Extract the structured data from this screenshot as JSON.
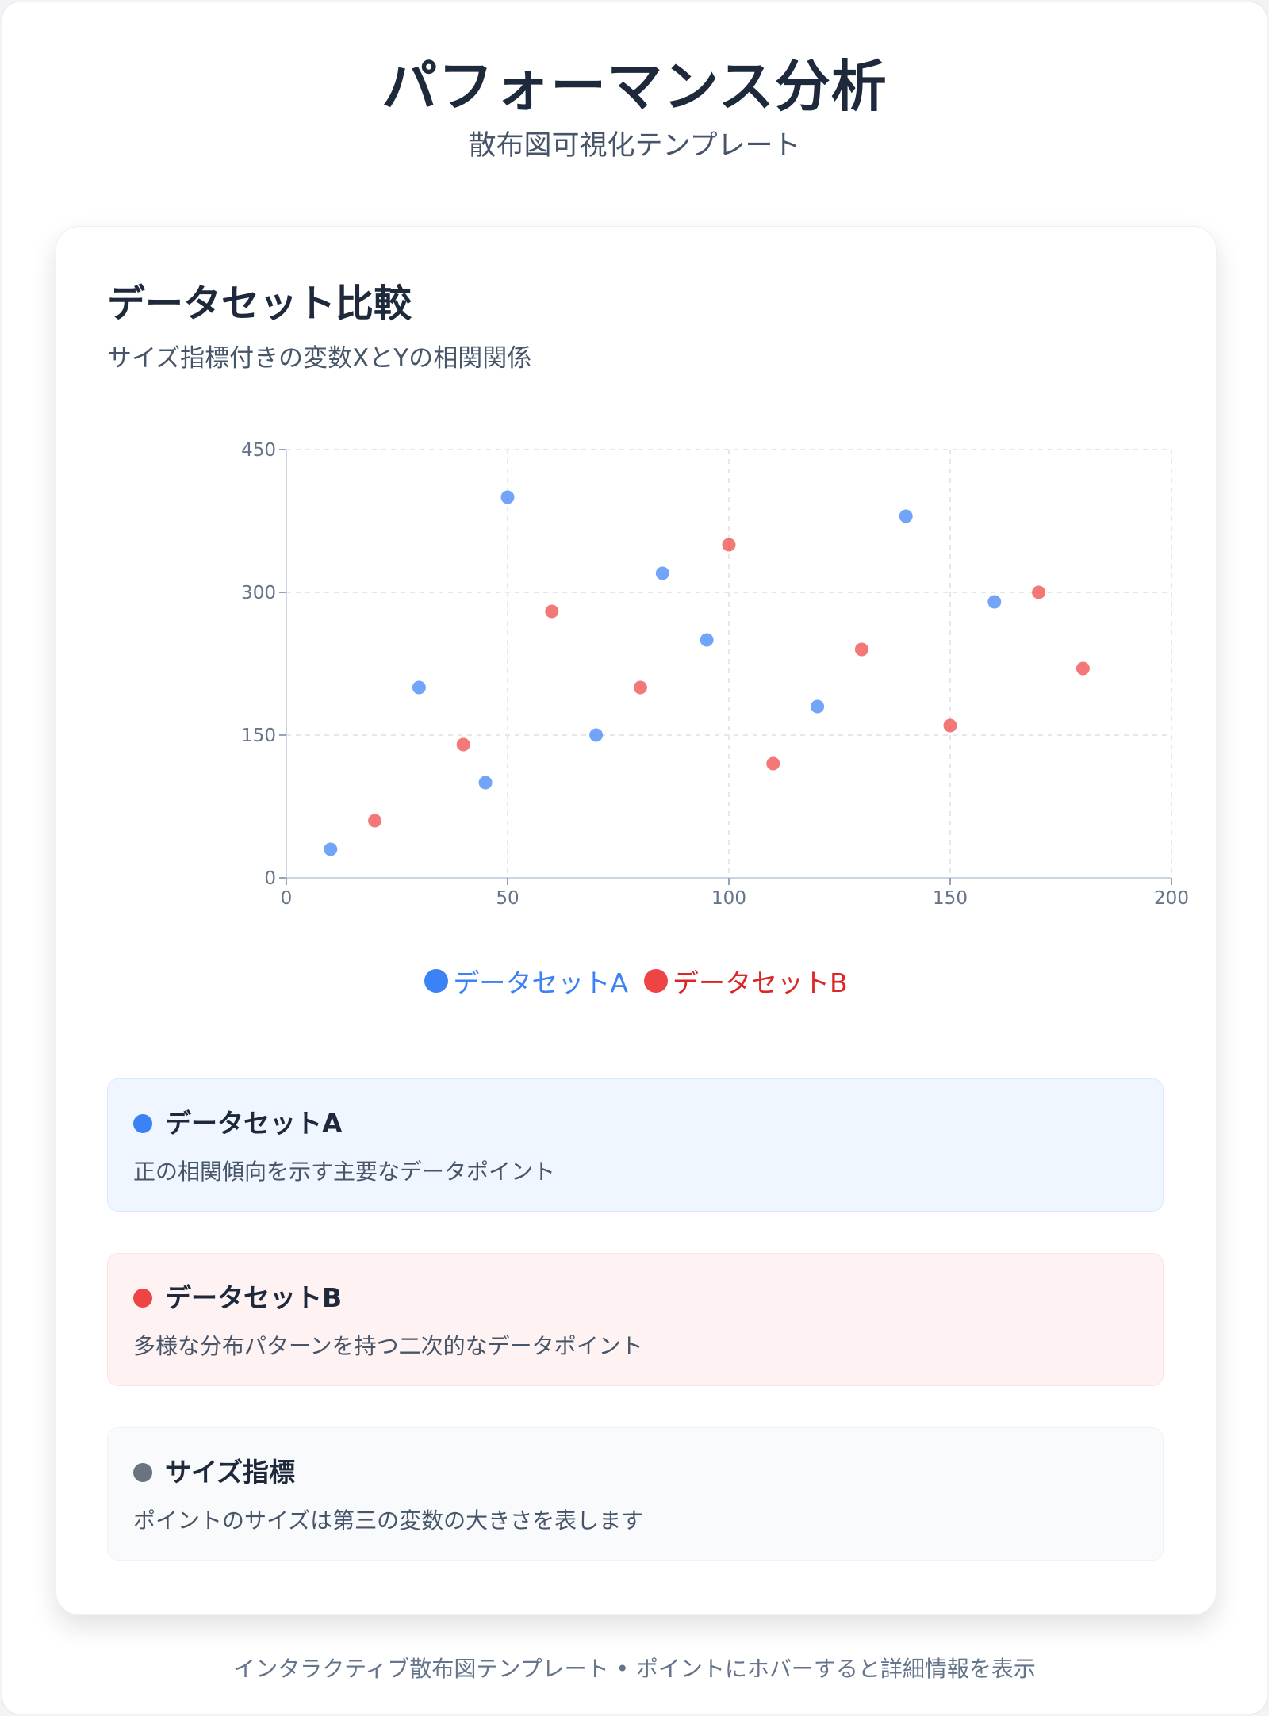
{
  "header": {
    "title": "パフォーマンス分析",
    "subtitle": "散布図可視化テンプレート"
  },
  "card": {
    "title": "データセット比較",
    "description": "サイズ指標付きの変数XとYの相関関係"
  },
  "colors": {
    "dataset_a": "#3b82f6",
    "dataset_b": "#ef4444",
    "size_metric": "#6b7280"
  },
  "chart_data": {
    "type": "scatter",
    "title": "",
    "xlabel": "",
    "ylabel": "",
    "xlim": [
      0,
      200
    ],
    "ylim": [
      0,
      450
    ],
    "x_ticks": [
      "0",
      "50",
      "100",
      "150",
      "200"
    ],
    "y_ticks": [
      "0",
      "150",
      "300",
      "450"
    ],
    "grid": true,
    "legend_position": "bottom-center",
    "series": [
      {
        "name": "データセットA",
        "color": "#3b82f6",
        "points": [
          {
            "x": 10,
            "y": 30
          },
          {
            "x": 30,
            "y": 200
          },
          {
            "x": 45,
            "y": 100
          },
          {
            "x": 50,
            "y": 400
          },
          {
            "x": 70,
            "y": 150
          },
          {
            "x": 85,
            "y": 320
          },
          {
            "x": 95,
            "y": 250
          },
          {
            "x": 120,
            "y": 180
          },
          {
            "x": 140,
            "y": 380
          },
          {
            "x": 160,
            "y": 290
          }
        ]
      },
      {
        "name": "データセットB",
        "color": "#ef4444",
        "points": [
          {
            "x": 20,
            "y": 60
          },
          {
            "x": 40,
            "y": 140
          },
          {
            "x": 60,
            "y": 280
          },
          {
            "x": 80,
            "y": 200
          },
          {
            "x": 100,
            "y": 350
          },
          {
            "x": 110,
            "y": 120
          },
          {
            "x": 130,
            "y": 240
          },
          {
            "x": 150,
            "y": 160
          },
          {
            "x": 170,
            "y": 300
          },
          {
            "x": 180,
            "y": 220
          }
        ]
      }
    ]
  },
  "info": {
    "a": {
      "title": "データセットA",
      "text": "正の相関傾向を示す主要なデータポイント"
    },
    "b": {
      "title": "データセットB",
      "text": "多様な分布パターンを持つ二次的なデータポイント"
    },
    "c": {
      "title": "サイズ指標",
      "text": "ポイントのサイズは第三の変数の大きさを表します"
    }
  },
  "footer": {
    "text": "インタラクティブ散布図テンプレート • ポイントにホバーすると詳細情報を表示"
  }
}
